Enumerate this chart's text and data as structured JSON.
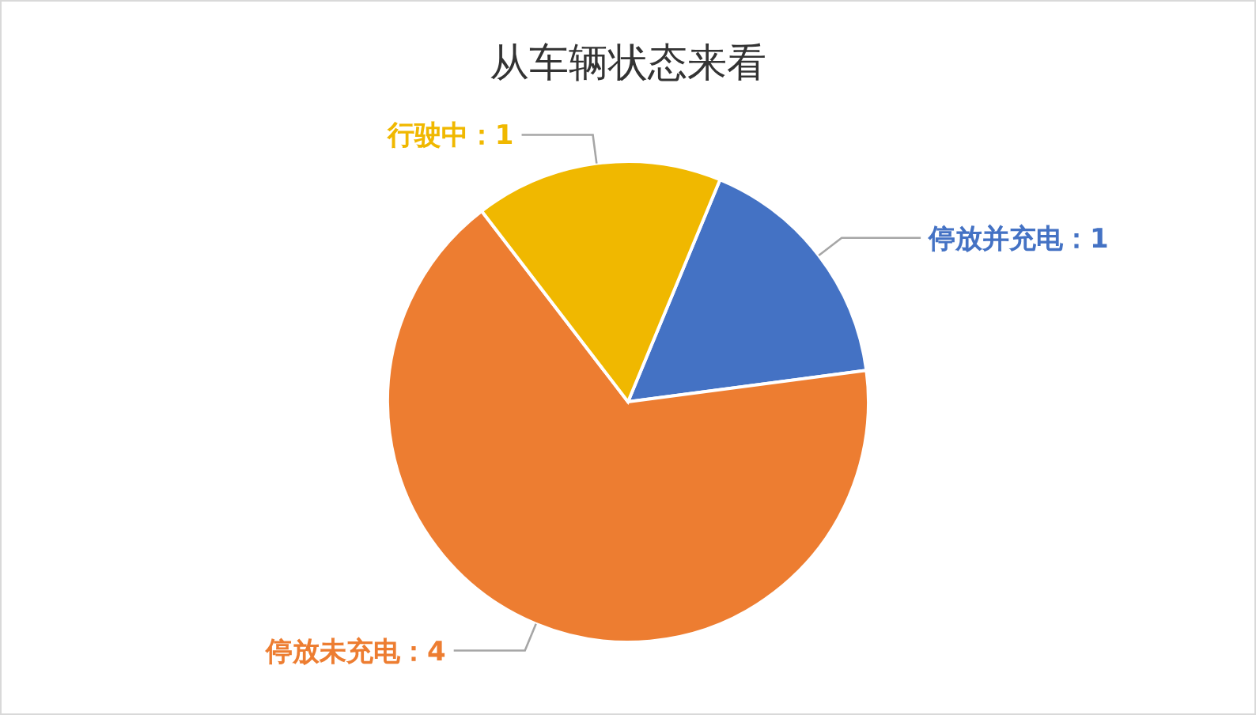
{
  "chart_data": {
    "type": "pie",
    "title": "从车辆状态来看",
    "categories": [
      "停放并充电",
      "停放未充电",
      "行驶中"
    ],
    "values": [
      1,
      4,
      1
    ],
    "colors": [
      "#4472c4",
      "#ed7d31",
      "#f0b800"
    ],
    "value_labels": [
      "：1",
      "：4",
      "：1"
    ],
    "legend": false
  }
}
